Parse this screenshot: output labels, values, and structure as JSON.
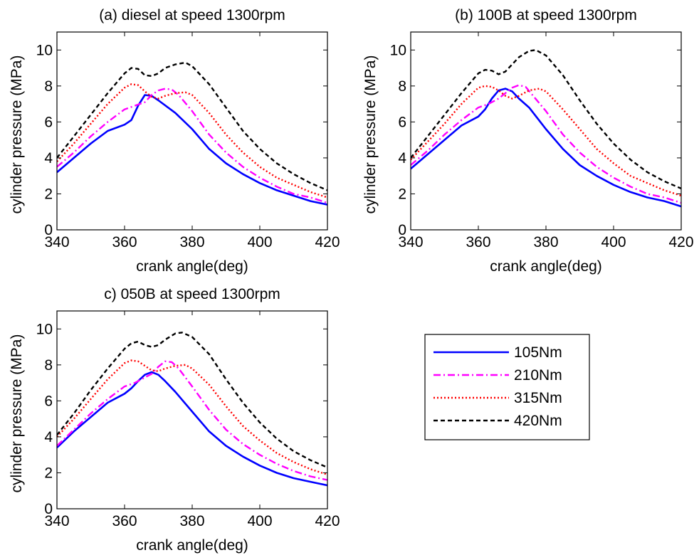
{
  "chart_data": [
    {
      "type": "line",
      "title": "(a) diesel at speed 1300rpm",
      "xlabel": "crank angle(deg)",
      "ylabel": "cylinder pressure (MPa)",
      "xlim": [
        340,
        420
      ],
      "ylim": [
        0,
        11
      ],
      "xticks": [
        340,
        360,
        380,
        400,
        420
      ],
      "yticks": [
        0,
        2,
        4,
        6,
        8,
        10
      ],
      "grid": false,
      "series": [
        {
          "name": "105Nm",
          "x": [
            340,
            345,
            350,
            355,
            360,
            362,
            364,
            366,
            368,
            370,
            375,
            380,
            385,
            390,
            395,
            400,
            405,
            410,
            415,
            420
          ],
          "y": [
            3.2,
            4.0,
            4.8,
            5.5,
            5.85,
            6.1,
            6.9,
            7.5,
            7.45,
            7.2,
            6.5,
            5.6,
            4.5,
            3.7,
            3.1,
            2.6,
            2.2,
            1.9,
            1.6,
            1.4
          ]
        },
        {
          "name": "210Nm",
          "x": [
            340,
            345,
            350,
            355,
            360,
            363,
            366,
            368,
            370,
            372,
            374,
            376,
            380,
            385,
            390,
            395,
            400,
            405,
            410,
            415,
            420
          ],
          "y": [
            3.5,
            4.3,
            5.2,
            6.0,
            6.7,
            6.9,
            7.1,
            7.5,
            7.75,
            7.85,
            7.8,
            7.5,
            6.6,
            5.3,
            4.3,
            3.5,
            2.9,
            2.4,
            2.0,
            1.8,
            1.5
          ]
        },
        {
          "name": "315Nm",
          "x": [
            340,
            345,
            350,
            355,
            360,
            362,
            364,
            366,
            368,
            370,
            372,
            375,
            378,
            380,
            385,
            390,
            395,
            400,
            405,
            410,
            415,
            420
          ],
          "y": [
            3.8,
            4.8,
            5.9,
            7.0,
            7.9,
            8.1,
            8.05,
            7.7,
            7.4,
            7.3,
            7.45,
            7.6,
            7.65,
            7.5,
            6.5,
            5.3,
            4.3,
            3.5,
            2.9,
            2.5,
            2.1,
            1.8
          ]
        },
        {
          "name": "420Nm",
          "x": [
            340,
            345,
            350,
            355,
            360,
            362,
            364,
            366,
            368,
            370,
            372,
            375,
            378,
            380,
            385,
            390,
            395,
            400,
            405,
            410,
            415,
            420
          ],
          "y": [
            4.0,
            5.2,
            6.4,
            7.6,
            8.7,
            9.0,
            8.95,
            8.6,
            8.55,
            8.7,
            9.0,
            9.2,
            9.3,
            9.1,
            8.1,
            6.8,
            5.5,
            4.5,
            3.7,
            3.1,
            2.6,
            2.2
          ]
        }
      ]
    },
    {
      "type": "line",
      "title": "(b) 100B at speed 1300rpm",
      "xlabel": "crank angle(deg)",
      "ylabel": "cylinder pressure (MPa)",
      "xlim": [
        340,
        420
      ],
      "ylim": [
        0,
        11
      ],
      "xticks": [
        340,
        360,
        380,
        400,
        420
      ],
      "yticks": [
        0,
        2,
        4,
        6,
        8,
        10
      ],
      "grid": false,
      "series": [
        {
          "name": "105Nm",
          "x": [
            340,
            345,
            350,
            355,
            360,
            362,
            364,
            366,
            368,
            370,
            372,
            375,
            380,
            385,
            390,
            395,
            400,
            405,
            410,
            415,
            420
          ],
          "y": [
            3.4,
            4.2,
            5.0,
            5.8,
            6.3,
            6.7,
            7.3,
            7.75,
            7.85,
            7.7,
            7.3,
            6.8,
            5.6,
            4.5,
            3.6,
            3.0,
            2.5,
            2.1,
            1.8,
            1.6,
            1.3
          ]
        },
        {
          "name": "210Nm",
          "x": [
            340,
            345,
            350,
            355,
            360,
            363,
            366,
            368,
            370,
            372,
            374,
            376,
            380,
            385,
            390,
            395,
            400,
            405,
            410,
            415,
            420
          ],
          "y": [
            3.6,
            4.4,
            5.3,
            6.1,
            6.8,
            7.0,
            7.3,
            7.6,
            7.9,
            8.05,
            7.95,
            7.5,
            6.6,
            5.3,
            4.3,
            3.5,
            2.9,
            2.4,
            2.0,
            1.8,
            1.5
          ]
        },
        {
          "name": "315Nm",
          "x": [
            340,
            345,
            350,
            355,
            360,
            362,
            364,
            366,
            368,
            370,
            372,
            375,
            378,
            380,
            385,
            390,
            395,
            400,
            405,
            410,
            415,
            420
          ],
          "y": [
            3.9,
            4.9,
            5.9,
            7.0,
            7.9,
            8.0,
            7.95,
            7.75,
            7.45,
            7.3,
            7.45,
            7.75,
            7.85,
            7.7,
            6.7,
            5.6,
            4.5,
            3.7,
            3.0,
            2.6,
            2.2,
            1.9
          ]
        },
        {
          "name": "420Nm",
          "x": [
            340,
            345,
            350,
            355,
            360,
            362,
            364,
            366,
            368,
            370,
            372,
            375,
            377,
            380,
            385,
            390,
            395,
            400,
            405,
            410,
            415,
            420
          ],
          "y": [
            4.0,
            5.2,
            6.4,
            7.6,
            8.7,
            8.9,
            8.85,
            8.65,
            8.8,
            9.2,
            9.6,
            9.95,
            10.0,
            9.7,
            8.6,
            7.2,
            5.9,
            4.8,
            3.9,
            3.2,
            2.7,
            2.3
          ]
        }
      ]
    },
    {
      "type": "line",
      "title": "c) 050B at speed 1300rpm",
      "xlabel": "crank angle(deg)",
      "ylabel": "cylinder pressure (MPa)",
      "xlim": [
        340,
        420
      ],
      "ylim": [
        0,
        11
      ],
      "xticks": [
        340,
        360,
        380,
        400,
        420
      ],
      "yticks": [
        0,
        2,
        4,
        6,
        8,
        10
      ],
      "grid": false,
      "series": [
        {
          "name": "105Nm",
          "x": [
            340,
            345,
            350,
            355,
            360,
            362,
            364,
            366,
            368,
            370,
            372,
            375,
            380,
            385,
            390,
            395,
            400,
            405,
            410,
            415,
            420
          ],
          "y": [
            3.4,
            4.3,
            5.1,
            5.9,
            6.4,
            6.7,
            7.1,
            7.45,
            7.6,
            7.45,
            7.1,
            6.5,
            5.4,
            4.3,
            3.5,
            2.9,
            2.4,
            2.0,
            1.7,
            1.5,
            1.3
          ]
        },
        {
          "name": "210Nm",
          "x": [
            340,
            345,
            350,
            355,
            360,
            363,
            366,
            368,
            370,
            372,
            374,
            376,
            380,
            385,
            390,
            395,
            400,
            405,
            410,
            415,
            420
          ],
          "y": [
            3.5,
            4.4,
            5.3,
            6.1,
            6.8,
            7.0,
            7.3,
            7.5,
            7.9,
            8.2,
            8.15,
            7.8,
            6.8,
            5.5,
            4.4,
            3.6,
            3.0,
            2.5,
            2.1,
            1.8,
            1.6
          ]
        },
        {
          "name": "315Nm",
          "x": [
            340,
            345,
            350,
            355,
            360,
            362,
            364,
            366,
            368,
            370,
            372,
            375,
            378,
            380,
            385,
            390,
            395,
            400,
            405,
            410,
            415,
            420
          ],
          "y": [
            4.0,
            5.0,
            6.1,
            7.2,
            8.1,
            8.25,
            8.2,
            7.95,
            7.7,
            7.65,
            7.8,
            7.95,
            8.0,
            7.8,
            6.9,
            5.7,
            4.6,
            3.8,
            3.1,
            2.6,
            2.2,
            1.9
          ]
        },
        {
          "name": "420Nm",
          "x": [
            340,
            345,
            350,
            355,
            360,
            362,
            364,
            366,
            368,
            370,
            372,
            375,
            377,
            380,
            385,
            390,
            395,
            400,
            405,
            410,
            415,
            420
          ],
          "y": [
            4.1,
            5.3,
            6.6,
            7.8,
            8.9,
            9.2,
            9.3,
            9.1,
            9.0,
            9.1,
            9.4,
            9.75,
            9.8,
            9.55,
            8.6,
            7.2,
            5.9,
            4.8,
            3.9,
            3.2,
            2.7,
            2.3
          ]
        }
      ]
    }
  ],
  "legend": {
    "placement": "right",
    "entries": [
      "105Nm",
      "210Nm",
      "315Nm",
      "420Nm"
    ]
  },
  "colors": {
    "105Nm": "#0000ff",
    "210Nm": "#ff00ff",
    "315Nm": "#ff0000",
    "420Nm": "#000000"
  }
}
